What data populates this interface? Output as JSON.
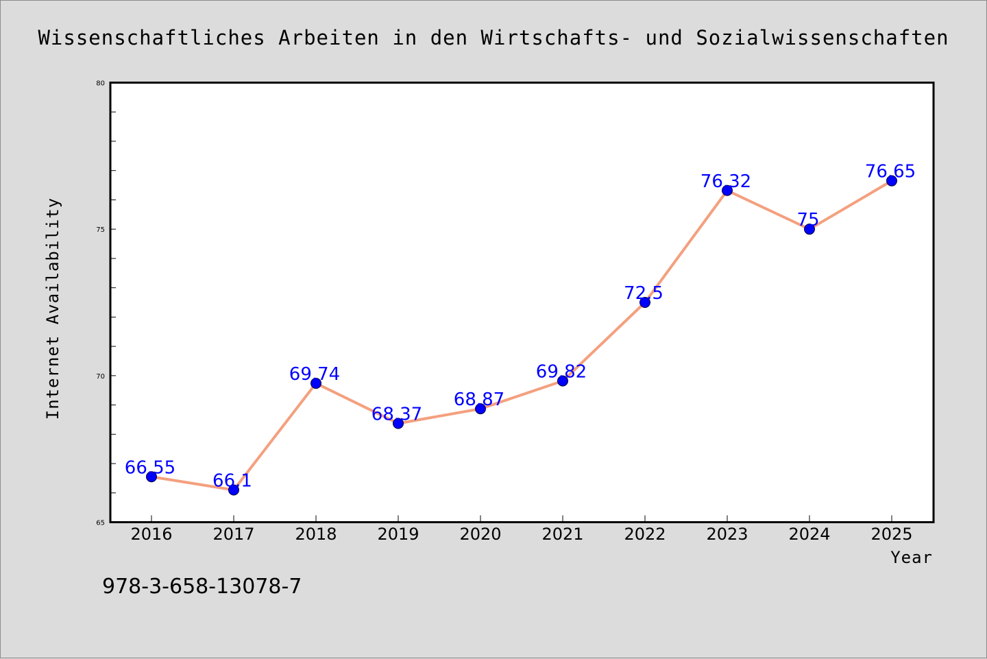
{
  "chart_data": {
    "type": "line",
    "title": "Wissenschaftliches Arbeiten in den Wirtschafts- und Sozialwissenschaften",
    "xlabel": "Year",
    "ylabel": "Internet Availability",
    "categories": [
      "2016",
      "2017",
      "2018",
      "2019",
      "2020",
      "2021",
      "2022",
      "2023",
      "2024",
      "2025"
    ],
    "series": [
      {
        "values": [
          66.55,
          66.1,
          69.74,
          68.37,
          68.87,
          69.82,
          72.5,
          76.32,
          75,
          76.65
        ],
        "labels": [
          "66.55",
          "66.1",
          "69.74",
          "68.37",
          "68.87",
          "69.82",
          "72.5",
          "76.32",
          "75",
          "76.65"
        ]
      }
    ],
    "ylim": [
      65,
      80
    ],
    "yticks": [
      "65",
      "70",
      "75",
      "80"
    ],
    "grid": false,
    "colors": {
      "line": "#f4a07f",
      "marker": "#0000ff",
      "data_label": "#0000ff",
      "background": "#dcdcdc",
      "plot_background": "#ffffff"
    }
  },
  "footer": {
    "isbn": "978-3-658-13078-7"
  }
}
